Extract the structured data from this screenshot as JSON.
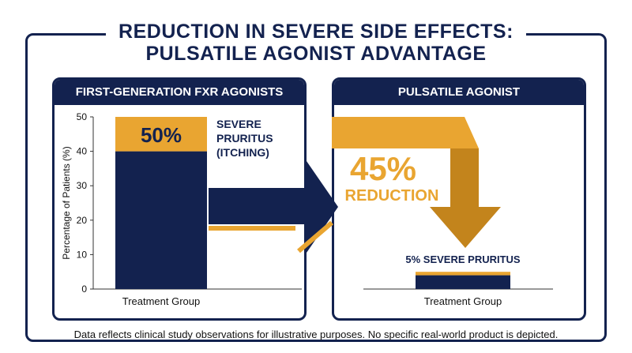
{
  "header": {
    "title_line1": "REDUCTION IN SEVERE SIDE EFFECTS:",
    "title_line2": "PULSATILE AGONIST ADVANTAGE"
  },
  "left_panel": {
    "title": "FIRST-GENERATION FXR AGONISTS",
    "ylabel": "Percentage of Patients (%)",
    "xlabel": "Treatment Group",
    "bar_label": "50%",
    "annotation": [
      "SEVERE",
      "PRURITUS",
      "(ITCHING)"
    ]
  },
  "right_panel": {
    "title": "PULSATILE AGONIST",
    "xlabel": "Treatment Group",
    "reduction_value": "45%",
    "reduction_label": "REDUCTION",
    "bar_annotation": "5% SEVERE PRURITUS"
  },
  "footnote": "Data reflects clinical study observations for illustrative purposes. No specific real-world product is depicted.",
  "colors": {
    "navy": "#13224f",
    "gold": "#e9a531",
    "dark_gold": "#c3841c"
  },
  "chart_data": [
    {
      "type": "bar",
      "title": "FIRST-GENERATION FXR AGONISTS",
      "xlabel": "Treatment Group",
      "ylabel": "Percentage of Patients (%)",
      "ylim": [
        0,
        50
      ],
      "yticks": [
        0,
        10,
        20,
        30,
        40,
        50
      ],
      "grid": false,
      "categories": [
        ""
      ],
      "series": [
        {
          "name": "",
          "values": [
            40
          ],
          "color": "#13224f"
        },
        {
          "name": "SEVERE PRURITUS (ITCHING)",
          "values": [
            10
          ],
          "color": "#e9a531"
        }
      ],
      "data_labels": [
        "50%"
      ]
    },
    {
      "type": "bar",
      "title": "PULSATILE AGONIST",
      "xlabel": "Treatment Group",
      "ylim": [
        0,
        50
      ],
      "categories": [
        ""
      ],
      "series": [
        {
          "name": "",
          "values": [
            4
          ],
          "color": "#13224f"
        },
        {
          "name": "5% SEVERE PRURITUS",
          "values": [
            1
          ],
          "color": "#e9a531"
        }
      ],
      "annotation": "45% REDUCTION"
    }
  ]
}
